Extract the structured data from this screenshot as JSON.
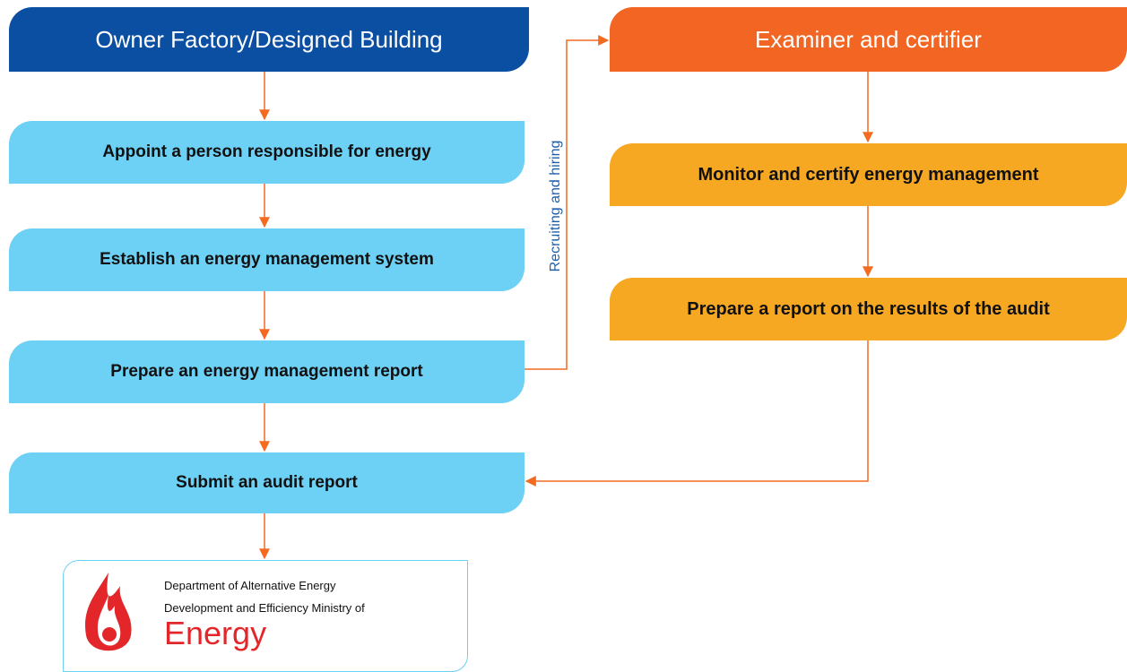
{
  "left": {
    "title": "Owner Factory/Designed Building",
    "steps": [
      "Appoint a person responsible for energy",
      "Establish an energy management system",
      "Prepare an energy management report",
      "Submit an audit report"
    ]
  },
  "right": {
    "title": "Examiner and certifier",
    "steps": [
      "Monitor and certify energy management",
      "Prepare a report on the results of the audit"
    ]
  },
  "side_label": "Recruiting and hiring",
  "logo": {
    "line1": "Department of Alternative Energy",
    "line2": "Development and Efficiency Ministry of",
    "line3": "Energy"
  }
}
